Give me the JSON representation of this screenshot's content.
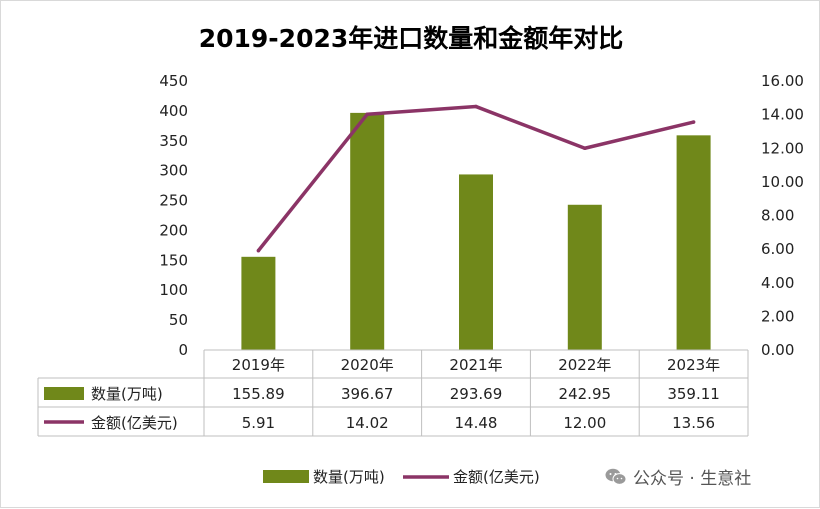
{
  "chart_data": {
    "type": "bar+line",
    "title": "2019-2023年进口数量和金额年对比",
    "categories": [
      "2019年",
      "2020年",
      "2021年",
      "2022年",
      "2023年"
    ],
    "series": [
      {
        "name": "数量(万吨)",
        "type": "bar",
        "axis": "left",
        "color": "#70881a",
        "values": [
          155.89,
          396.67,
          293.69,
          242.95,
          359.11
        ],
        "labels": [
          "155.89",
          "396.67",
          "293.69",
          "242.95",
          "359.11"
        ]
      },
      {
        "name": "金额(亿美元)",
        "type": "line",
        "axis": "right",
        "color": "#8b3466",
        "values": [
          5.91,
          14.02,
          14.48,
          12.0,
          13.56
        ],
        "labels": [
          "5.91",
          "14.02",
          "14.48",
          "12.00",
          "13.56"
        ]
      }
    ],
    "y_left": {
      "min": 0,
      "max": 450,
      "step": 50,
      "ticks": [
        "0",
        "50",
        "100",
        "150",
        "200",
        "250",
        "300",
        "350",
        "400",
        "450"
      ]
    },
    "y_right": {
      "min": 0,
      "max": 16,
      "step": 2,
      "ticks": [
        "0.00",
        "2.00",
        "4.00",
        "6.00",
        "8.00",
        "10.00",
        "12.00",
        "14.00",
        "16.00"
      ]
    },
    "grid": false,
    "legend_position": "bottom",
    "data_table": true
  },
  "watermark": {
    "text": "公众号 · 生意社",
    "icon": "wechat-icon"
  }
}
